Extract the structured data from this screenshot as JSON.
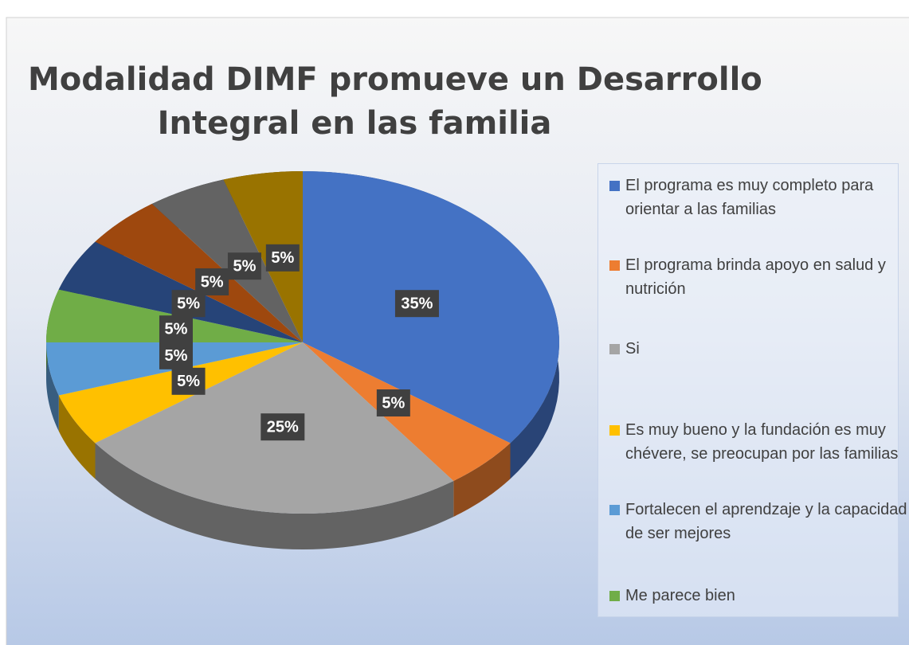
{
  "chart_data": {
    "type": "pie",
    "title": [
      "Modalidad DIMF promueve un Desarrollo",
      "Integral en las familia"
    ],
    "categories": [
      "El programa es muy completo para orientar a las familias",
      "El programa brinda apoyo en salud y nutrición",
      "Si",
      "Es muy bueno y la fundación es muy chévere, se preocupan por las familias",
      "Fortalecen el aprendzaje y la capacidad de ser mejores",
      "Me parece bien",
      null,
      null,
      null,
      null
    ],
    "values": [
      35,
      5,
      25,
      5,
      5,
      5,
      5,
      5,
      5,
      5
    ],
    "value_labels": [
      "35%",
      "5%",
      "25%",
      "5%",
      "5%",
      "5%",
      "5%",
      "5%",
      "5%",
      "5%"
    ],
    "colors": [
      "#4472c4",
      "#ed7d31",
      "#a5a5a5",
      "#ffc000",
      "#5b9bd5",
      "#70ad47",
      "#264478",
      "#9e480e",
      "#636363",
      "#997300"
    ],
    "legend": "right"
  }
}
